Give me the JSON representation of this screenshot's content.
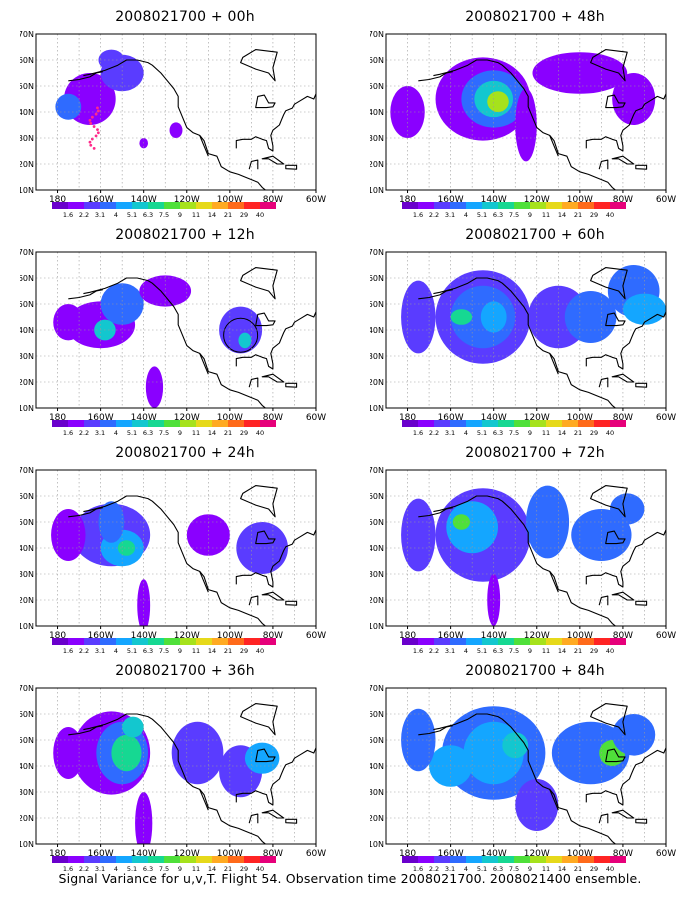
{
  "panels": [
    {
      "title": "2008021700 + 00h",
      "lead_hours": 0
    },
    {
      "title": "2008021700 + 48h",
      "lead_hours": 48
    },
    {
      "title": "2008021700 + 12h",
      "lead_hours": 12
    },
    {
      "title": "2008021700 + 60h",
      "lead_hours": 60
    },
    {
      "title": "2008021700 + 24h",
      "lead_hours": 24
    },
    {
      "title": "2008021700 + 72h",
      "lead_hours": 72
    },
    {
      "title": "2008021700 + 36h",
      "lead_hours": 36
    },
    {
      "title": "2008021700 + 84h",
      "lead_hours": 84
    }
  ],
  "axes": {
    "lat_ticks": [
      "70N",
      "60N",
      "50N",
      "40N",
      "30N",
      "20N",
      "10N"
    ],
    "lon_ticks": [
      "180",
      "160W",
      "140W",
      "120W",
      "100W",
      "80W",
      "60W"
    ]
  },
  "colorbar": {
    "labels": [
      "1.6",
      "2.2",
      "3.1",
      "4",
      "5.1",
      "6.3",
      "7.5",
      "9",
      "11",
      "14",
      "21",
      "29",
      "40"
    ],
    "colors": [
      "#6a00cc",
      "#8a00ff",
      "#5a3cff",
      "#2f6bff",
      "#14a6ff",
      "#13c7cf",
      "#16d892",
      "#4fe03a",
      "#a6e21c",
      "#e6d91a",
      "#ffaa22",
      "#ff6a1a",
      "#ff2424",
      "#e6007a"
    ]
  },
  "caption": "Signal Variance for u,v,T. Flight 54. Observation time 2008021700. 2008021400 ensemble."
}
